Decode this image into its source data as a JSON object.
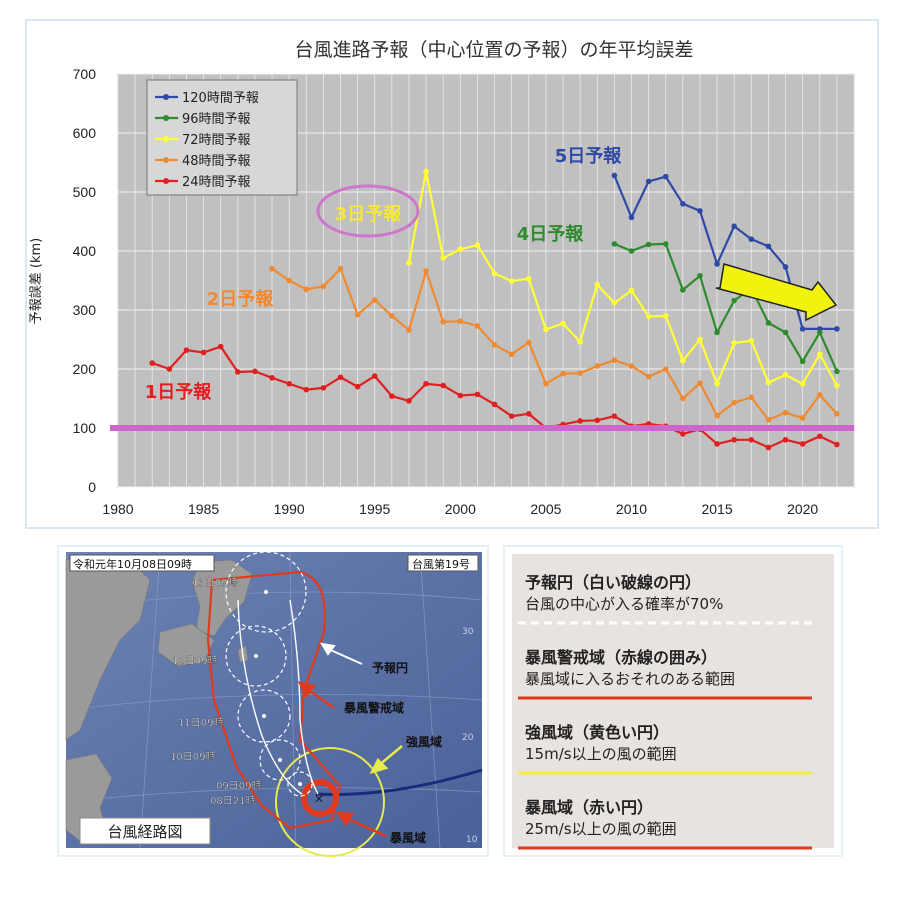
{
  "chart_data": {
    "type": "line",
    "title": "台風進路予報（中心位置の予報）の年平均誤差",
    "ylabel": "予報誤差 (km)",
    "xlabel": "",
    "xlim": [
      1980,
      2023
    ],
    "ylim": [
      0,
      700
    ],
    "x_ticks": [
      1980,
      1985,
      1990,
      1995,
      2000,
      2005,
      2010,
      2015,
      2020
    ],
    "y_ticks": [
      0,
      100,
      200,
      300,
      400,
      500,
      600,
      700
    ],
    "grid": true,
    "legend_position": "top-left",
    "reference_line": {
      "value": 100,
      "color": "#cc66cc"
    },
    "series": [
      {
        "name": "120時間予報",
        "color": "#2f49a6",
        "x": [
          2009,
          2010,
          2011,
          2012,
          2013,
          2014,
          2015,
          2016,
          2017,
          2018,
          2019,
          2020,
          2021,
          2022
        ],
        "y": [
          528,
          457,
          518,
          526,
          480,
          468,
          378,
          442,
          420,
          408,
          373,
          268,
          268,
          268
        ]
      },
      {
        "name": "96時間予報",
        "color": "#2e8b2e",
        "x": [
          2009,
          2010,
          2011,
          2012,
          2013,
          2014,
          2015,
          2016,
          2017,
          2018,
          2019,
          2020,
          2021,
          2022
        ],
        "y": [
          412,
          400,
          411,
          412,
          334,
          358,
          262,
          316,
          337,
          278,
          262,
          213,
          262,
          196
        ]
      },
      {
        "name": "72時間予報",
        "color": "#ffff33",
        "x": [
          1997,
          1998,
          1999,
          2000,
          2001,
          2002,
          2003,
          2004,
          2005,
          2006,
          2007,
          2008,
          2009,
          2010,
          2011,
          2012,
          2013,
          2014,
          2015,
          2016,
          2017,
          2018,
          2019,
          2020,
          2021,
          2022
        ],
        "y": [
          380,
          535,
          388,
          403,
          410,
          362,
          349,
          353,
          267,
          277,
          246,
          343,
          312,
          333,
          289,
          290,
          214,
          250,
          175,
          244,
          248,
          177,
          190,
          175,
          225,
          172
        ]
      },
      {
        "name": "48時間予報",
        "color": "#f08a30",
        "x": [
          1989,
          1990,
          1991,
          1992,
          1993,
          1994,
          1995,
          1996,
          1997,
          1998,
          1999,
          2000,
          2001,
          2002,
          2003,
          2004,
          2005,
          2006,
          2007,
          2008,
          2009,
          2010,
          2011,
          2012,
          2013,
          2014,
          2015,
          2016,
          2017,
          2018,
          2019,
          2020,
          2021,
          2022
        ],
        "y": [
          370,
          350,
          335,
          340,
          370,
          292,
          317,
          290,
          266,
          366,
          280,
          281,
          273,
          241,
          225,
          245,
          175,
          192,
          193,
          205,
          215,
          205,
          187,
          200,
          150,
          176,
          121,
          143,
          152,
          114,
          126,
          117,
          156,
          124
        ]
      },
      {
        "name": "24時間予報",
        "color": "#e02020",
        "x": [
          1982,
          1983,
          1984,
          1985,
          1986,
          1987,
          1988,
          1989,
          1990,
          1991,
          1992,
          1993,
          1994,
          1995,
          1996,
          1997,
          1998,
          1999,
          2000,
          2001,
          2002,
          2003,
          2004,
          2005,
          2006,
          2007,
          2008,
          2009,
          2010,
          2011,
          2012,
          2013,
          2014,
          2015,
          2016,
          2017,
          2018,
          2019,
          2020,
          2021,
          2022
        ],
        "y": [
          210,
          200,
          232,
          228,
          238,
          195,
          196,
          185,
          175,
          165,
          168,
          186,
          170,
          188,
          154,
          146,
          175,
          172,
          155,
          157,
          140,
          120,
          124,
          100,
          106,
          112,
          113,
          120,
          103,
          107,
          103,
          90,
          98,
          73,
          80,
          80,
          67,
          80,
          73,
          86,
          72
        ]
      }
    ],
    "annotations": [
      {
        "text": "5日予報",
        "color": "#2f49a6"
      },
      {
        "text": "4日予報",
        "color": "#2e8b2e"
      },
      {
        "text": "3日予報",
        "color": "#f5e63a"
      },
      {
        "text": "2日予報",
        "color": "#f08a30"
      },
      {
        "text": "1日予報",
        "color": "#e02020"
      }
    ]
  },
  "map_panel": {
    "datetime_label": "令和元年10月08日09時",
    "typhoon_label": "台風第19号",
    "caption": "台風経路図",
    "time_labels": [
      "13日09時",
      "12日09時",
      "11日09時",
      "10日09時",
      "09日09時",
      "08日21時"
    ],
    "callouts": [
      "予報円",
      "暴風警戒域",
      "強風域",
      "暴風域"
    ],
    "grid_labels": [
      "30",
      "20",
      "10"
    ]
  },
  "legend_panel": {
    "items": [
      {
        "title": "予報円（白い破線の円）",
        "desc": "台風の中心が入る確率が70%",
        "line_color": "#ffffff",
        "line_style": "dashed"
      },
      {
        "title": "暴風警戒域（赤線の囲み）",
        "desc": "暴風域に入るおそれのある範囲",
        "line_color": "#e03a1e",
        "line_style": "solid"
      },
      {
        "title": "強風域（黄色い円）",
        "desc": "15m/s以上の風の範囲",
        "line_color": "#f2ee3c",
        "line_style": "solid"
      },
      {
        "title": "暴風域（赤い円）",
        "desc": "25m/s以上の風の範囲",
        "line_color": "#e03a1e",
        "line_style": "solid"
      }
    ]
  }
}
